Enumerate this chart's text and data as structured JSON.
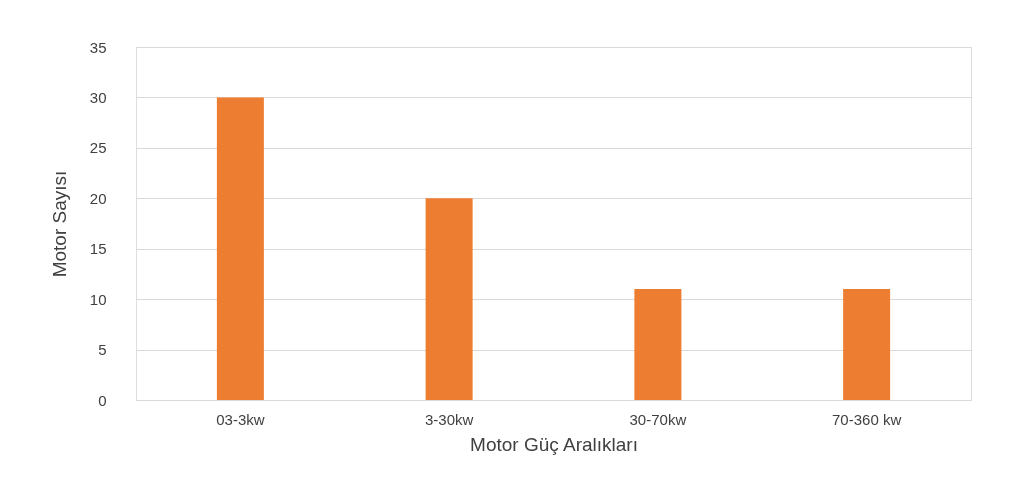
{
  "chart_data": {
    "type": "bar",
    "xlabel": "Motor Güç Aralıkları",
    "ylabel": "Motor Sayısı",
    "categories": [
      "03-3kw",
      "3-30kw",
      "30-70kw",
      "70-360 kw"
    ],
    "values": [
      30,
      20,
      11,
      11
    ],
    "color": "#ed7d31",
    "ylim": [
      0,
      35
    ],
    "yticks": [
      0,
      5,
      10,
      15,
      20,
      25,
      30,
      35
    ],
    "grid": "y"
  }
}
